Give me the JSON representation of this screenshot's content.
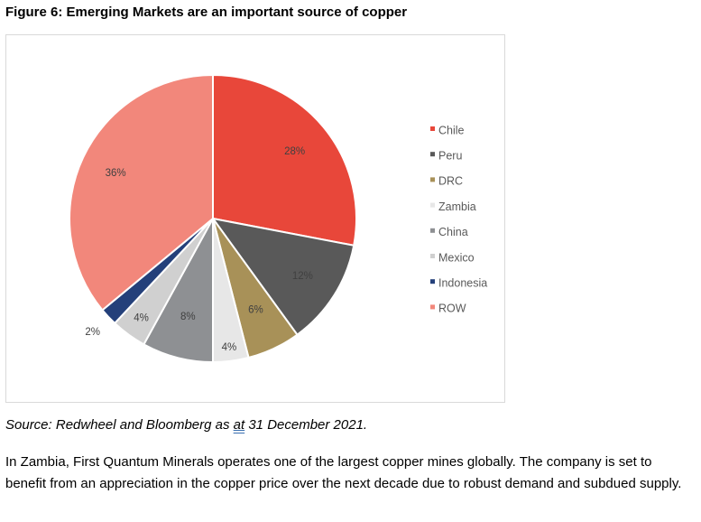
{
  "figure_title": "Figure 6: Emerging Markets are an important source of copper",
  "source": {
    "prefix": "Source: Redwheel and Bloomberg as ",
    "underlined": "at",
    "suffix": " 31 December 2021."
  },
  "body_text": "In Zambia, First Quantum Minerals operates one of the largest copper mines globally. The company is set to benefit from an appreciation in the copper price over the next decade due to robust demand and subdued supply.",
  "chart_data": {
    "type": "pie",
    "title": "",
    "legend_position": "right",
    "slices": [
      {
        "label": "Chile",
        "value": 28,
        "display": "28%",
        "color": "#e8473a"
      },
      {
        "label": "Peru",
        "value": 12,
        "display": "12%",
        "color": "#595959"
      },
      {
        "label": "DRC",
        "value": 6,
        "display": "6%",
        "color": "#a89158"
      },
      {
        "label": "Zambia",
        "value": 4,
        "display": "4%",
        "color": "#e7e7e7"
      },
      {
        "label": "China",
        "value": 8,
        "display": "8%",
        "color": "#8e9093"
      },
      {
        "label": "Mexico",
        "value": 4,
        "display": "4%",
        "color": "#d0d0d0"
      },
      {
        "label": "Indonesia",
        "value": 2,
        "display": "2%",
        "color": "#24407a"
      },
      {
        "label": "ROW",
        "value": 36,
        "display": "36%",
        "color": "#f2877b"
      }
    ]
  }
}
